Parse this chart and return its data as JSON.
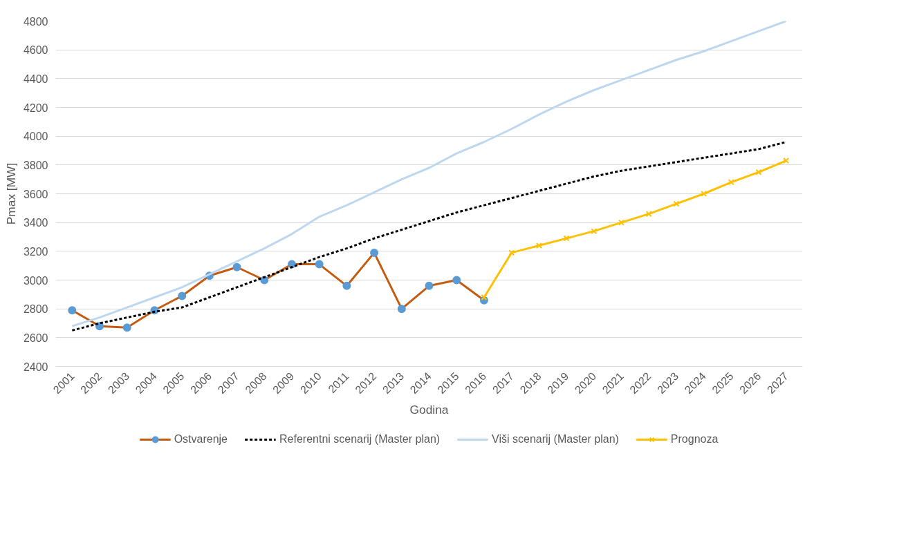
{
  "chart_data": {
    "type": "line",
    "xlabel": "Godina",
    "ylabel": "Pmax [MW]",
    "categories": [
      "2001",
      "2002",
      "2003",
      "2004",
      "2005",
      "2006",
      "2007",
      "2008",
      "2009",
      "2010",
      "2011",
      "2012",
      "2013",
      "2014",
      "2015",
      "2016",
      "2017",
      "2018",
      "2019",
      "2020",
      "2021",
      "2022",
      "2023",
      "2024",
      "2025",
      "2026",
      "2027"
    ],
    "ylim": [
      2400,
      4800
    ],
    "yticks": [
      2400,
      2600,
      2800,
      3000,
      3200,
      3400,
      3600,
      3800,
      4000,
      4200,
      4400,
      4600,
      4800
    ],
    "grid": "y",
    "legend": "bottom",
    "series": [
      {
        "name": "Ostvarenje",
        "color": "#c55a11",
        "marker": "circle",
        "line_style": "solid",
        "colors": [
          "#5b9bd5",
          "#5b9bd5",
          "#5b9bd5",
          "#5b9bd5",
          "#5b9bd5",
          "#5b9bd5",
          "#5b9bd5",
          "#5b9bd5",
          "#5b9bd5",
          "#5b9bd5",
          "#5b9bd5",
          "#5b9bd5",
          "#5b9bd5",
          "#5b9bd5",
          "#5b9bd5",
          "#5b9bd5",
          null,
          null,
          null,
          null,
          null,
          null,
          null,
          null,
          null,
          null,
          null
        ],
        "values": [
          2790,
          2680,
          2670,
          2790,
          2890,
          3030,
          3090,
          3000,
          3110,
          3110,
          2960,
          3190,
          2800,
          2960,
          3000,
          2860,
          null,
          null,
          null,
          null,
          null,
          null,
          null,
          null,
          null,
          null,
          null
        ]
      },
      {
        "name": "Referentni scenarij (Master plan)",
        "color": "#000000",
        "marker": "none",
        "line_style": "dashed",
        "values": [
          2650,
          2700,
          2740,
          2780,
          2810,
          2880,
          2950,
          3020,
          3090,
          3160,
          3220,
          3290,
          3350,
          3410,
          3470,
          3520,
          3570,
          3620,
          3670,
          3720,
          3760,
          3790,
          3820,
          3850,
          3880,
          3910,
          3960
        ]
      },
      {
        "name": "Viši scenarij (Master plan)",
        "color": "#bdd7ee",
        "marker": "none",
        "line_style": "solid",
        "values": [
          2680,
          2740,
          2810,
          2880,
          2950,
          3040,
          3130,
          3220,
          3320,
          3440,
          3520,
          3610,
          3700,
          3780,
          3880,
          3960,
          4050,
          4150,
          4240,
          4320,
          4390,
          4460,
          4530,
          4590,
          4660,
          4730,
          4800
        ]
      },
      {
        "name": "Prognoza",
        "color": "#ffc000",
        "marker": "cross",
        "line_style": "solid",
        "values": [
          null,
          null,
          null,
          null,
          null,
          null,
          null,
          null,
          null,
          null,
          null,
          null,
          null,
          null,
          null,
          2880,
          3190,
          3240,
          3290,
          3340,
          3400,
          3460,
          3530,
          3600,
          3680,
          3750,
          3830
        ]
      }
    ]
  }
}
